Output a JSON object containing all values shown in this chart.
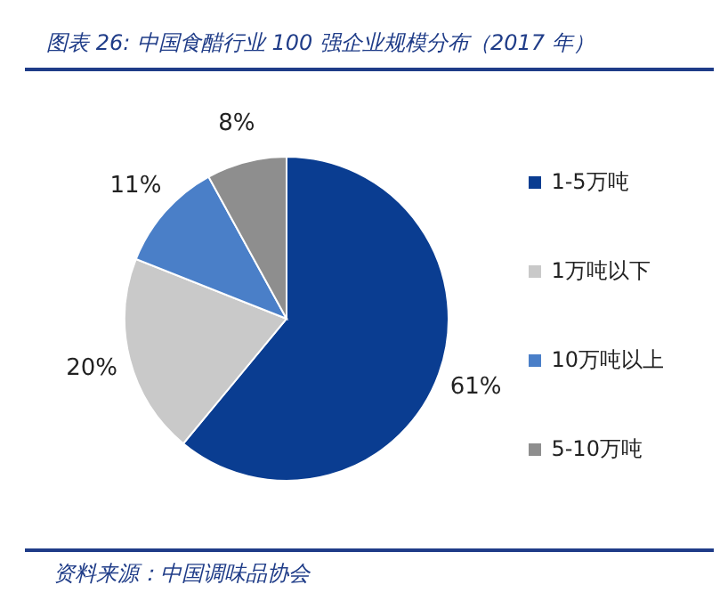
{
  "chart_data": {
    "type": "pie",
    "title": "图表 26:  中国食醋行业 100 强企业规模分布（2017 年）",
    "categories": [
      "1-5万吨",
      "1万吨以下",
      "10万吨以上",
      "5-10万吨"
    ],
    "values": [
      61,
      20,
      11,
      8
    ],
    "value_labels": [
      "61%",
      "20%",
      "11%",
      "8%"
    ],
    "colors": [
      "#0a3d91",
      "#c9c9c9",
      "#4a7fc8",
      "#8e8e8e"
    ],
    "legend": "right",
    "annotations": [
      "资料来源：中国调味品协会"
    ]
  }
}
